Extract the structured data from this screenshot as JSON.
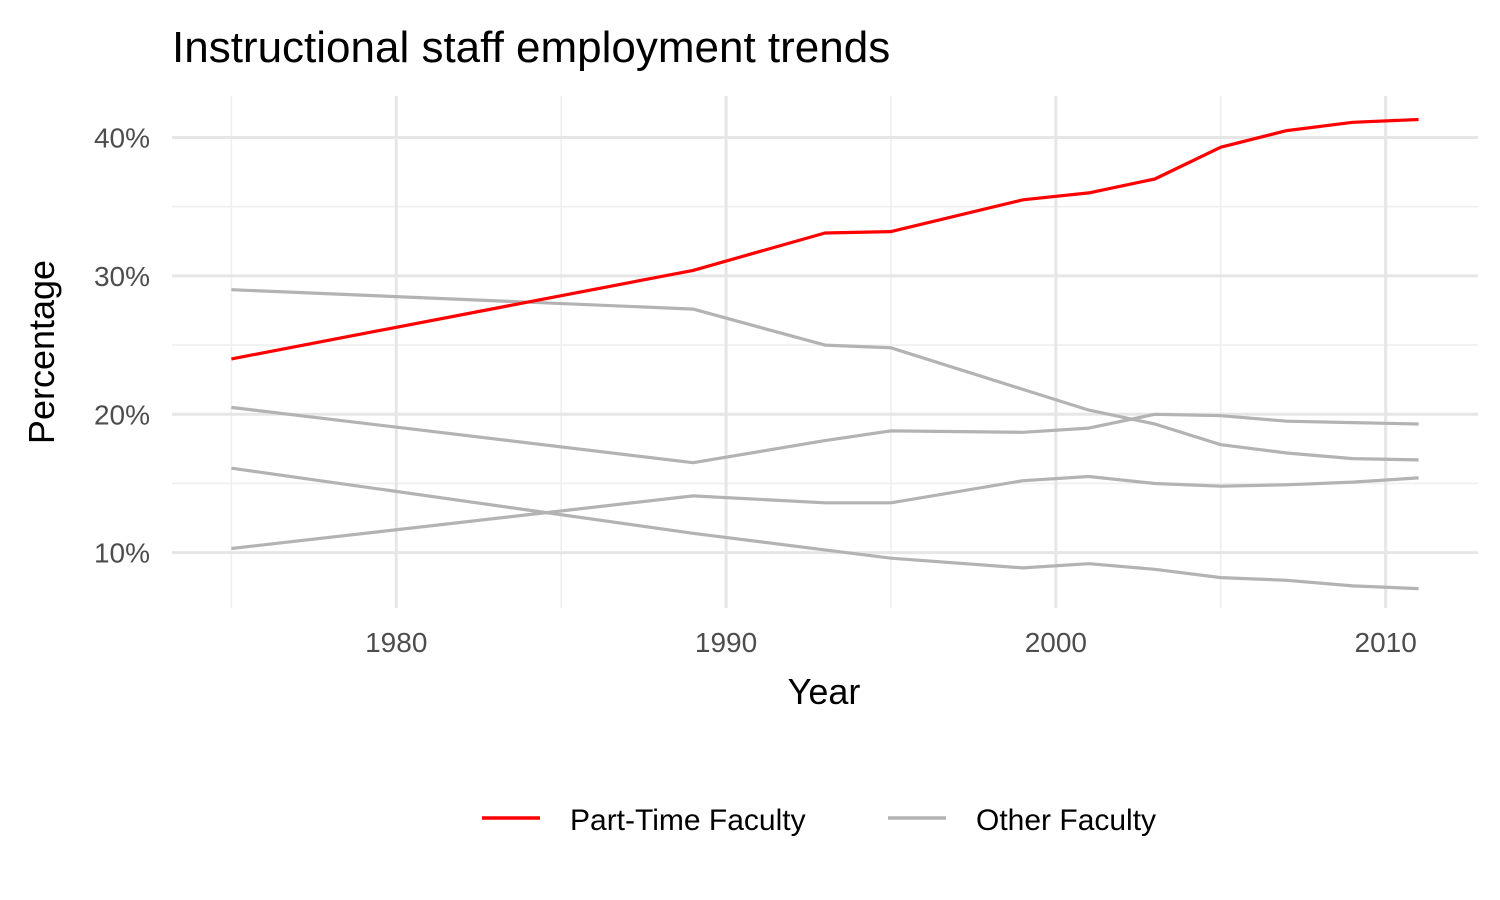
{
  "chart_data": {
    "type": "line",
    "title": "Instructional staff employment trends",
    "xlabel": "Year",
    "ylabel": "Percentage",
    "xlim": [
      1973.2,
      2012.8
    ],
    "ylim": [
      6,
      43
    ],
    "x_ticks": [
      1980,
      1990,
      2000,
      2010
    ],
    "x_tick_labels": [
      "1980",
      "1990",
      "2000",
      "2010"
    ],
    "y_ticks": [
      10,
      20,
      30,
      40
    ],
    "y_tick_labels": [
      "10%",
      "20%",
      "30%",
      "40%"
    ],
    "grid": true,
    "legend_position": "bottom",
    "legend": [
      {
        "label": "Part-Time Faculty",
        "color": "#ff0000"
      },
      {
        "label": "Other Faculty",
        "color": "#b3b3b3"
      }
    ],
    "series": [
      {
        "name": "Part-Time Faculty",
        "group": "Part-Time Faculty",
        "color": "#ff0000",
        "x": [
          1975,
          1989,
          1993,
          1995,
          1999,
          2001,
          2003,
          2005,
          2007,
          2009,
          2011
        ],
        "y": [
          24.0,
          30.4,
          33.1,
          33.2,
          35.5,
          36.0,
          37.0,
          39.3,
          40.5,
          41.1,
          41.3
        ]
      },
      {
        "group": "Other Faculty",
        "color": "#b3b3b3",
        "x": [
          1975,
          1989,
          1993,
          1995,
          1999,
          2001,
          2003,
          2005,
          2007,
          2009,
          2011
        ],
        "y": [
          29.0,
          27.6,
          25.0,
          24.8,
          21.8,
          20.3,
          19.3,
          17.8,
          17.2,
          16.8,
          16.7
        ]
      },
      {
        "group": "Other Faculty",
        "color": "#b3b3b3",
        "x": [
          1975,
          1989,
          1993,
          1995,
          1999,
          2001,
          2003,
          2005,
          2007,
          2009,
          2011
        ],
        "y": [
          20.5,
          16.5,
          18.1,
          18.8,
          18.7,
          19.0,
          20.0,
          19.9,
          19.5,
          19.4,
          19.3
        ]
      },
      {
        "group": "Other Faculty",
        "color": "#b3b3b3",
        "x": [
          1975,
          1989,
          1993,
          1995,
          1999,
          2001,
          2003,
          2005,
          2007,
          2009,
          2011
        ],
        "y": [
          16.1,
          11.4,
          10.2,
          9.6,
          8.9,
          9.2,
          8.8,
          8.2,
          8.0,
          7.6,
          7.4
        ]
      },
      {
        "group": "Other Faculty",
        "color": "#b3b3b3",
        "x": [
          1975,
          1989,
          1993,
          1995,
          1999,
          2001,
          2003,
          2005,
          2007,
          2009,
          2011
        ],
        "y": [
          10.3,
          14.1,
          13.6,
          13.6,
          15.2,
          15.5,
          15.0,
          14.8,
          14.9,
          15.1,
          15.4
        ]
      }
    ]
  }
}
